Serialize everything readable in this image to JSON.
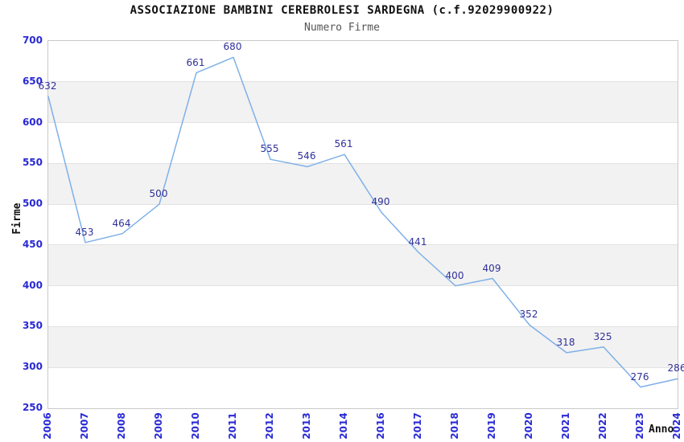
{
  "chart_data": {
    "type": "line",
    "title": "ASSOCIAZIONE BAMBINI CEREBROLESI SARDEGNA (c.f.92029900922)",
    "subtitle": "Numero Firme",
    "xlabel": "Anno",
    "ylabel": "Firme",
    "categories": [
      "2006",
      "2007",
      "2008",
      "2009",
      "2010",
      "2011",
      "2012",
      "2013",
      "2014",
      "2016",
      "2017",
      "2018",
      "2019",
      "2020",
      "2021",
      "2022",
      "2023",
      "2024"
    ],
    "values": [
      632,
      453,
      464,
      500,
      661,
      680,
      555,
      546,
      561,
      490,
      441,
      400,
      409,
      352,
      318,
      325,
      276,
      286
    ],
    "ylim": [
      250,
      700
    ],
    "ytick_step": 50,
    "yticks": [
      700,
      650,
      600,
      550,
      500,
      450,
      400,
      350,
      300,
      250
    ],
    "legend": "none",
    "grid": "horizontal-alternating-bands",
    "markers": "none",
    "colors": {
      "line": "#7fb0e8",
      "tick_label": "#2929d6",
      "data_label": "#30309a",
      "band_fill": "#f2f2f2",
      "gridline": "#e2e2e2",
      "plot_border": "#c9c9c9",
      "title": "#111111",
      "subtitle": "#555555",
      "axis_label": "#111111",
      "background": "#ffffff"
    }
  }
}
